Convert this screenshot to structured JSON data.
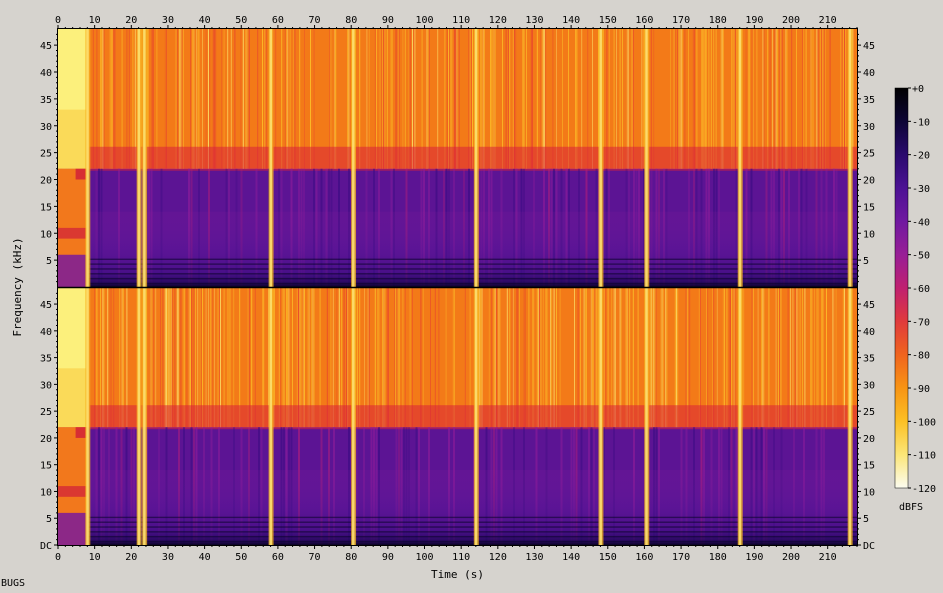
{
  "chart_data": {
    "type": "heatmap",
    "description_kind": "spectrogram",
    "xlabel": "Time (s)",
    "ylabel": "Frequency (kHz)",
    "x_ticks": [
      0,
      10,
      20,
      30,
      40,
      50,
      60,
      70,
      80,
      90,
      100,
      110,
      120,
      130,
      140,
      150,
      160,
      170,
      180,
      190,
      200,
      210
    ],
    "xlim": [
      0,
      218
    ],
    "y_ticks": [
      "DC",
      "5",
      "10",
      "15",
      "20",
      "25",
      "30",
      "35",
      "40",
      "45"
    ],
    "y_tick_values": [
      0,
      5,
      10,
      15,
      20,
      25,
      30,
      35,
      40,
      45
    ],
    "ylim": [
      0,
      48
    ],
    "channels": 2,
    "colorbar": {
      "unit": "dBFS",
      "ticks": [
        "+0",
        "-10",
        "-20",
        "-30",
        "-40",
        "-50",
        "-60",
        "-70",
        "-80",
        "-90",
        "-100",
        "-110",
        "-120"
      ],
      "range": [
        0,
        -120
      ],
      "colors": [
        "#000000",
        "#0d0535",
        "#2a0a6e",
        "#4c1294",
        "#7018a0",
        "#981e96",
        "#c02070",
        "#e03a3c",
        "#f0641e",
        "#f89414",
        "#fcc024",
        "#fce678",
        "#fcfcf0"
      ]
    },
    "lowpass_cutoff_khz": 22,
    "gap_times": [
      8,
      22,
      23.5,
      58,
      80.5,
      114,
      148,
      160.5,
      186,
      216
    ],
    "quiet_segment": [
      0,
      8
    ]
  },
  "footer_label": "BUGS"
}
